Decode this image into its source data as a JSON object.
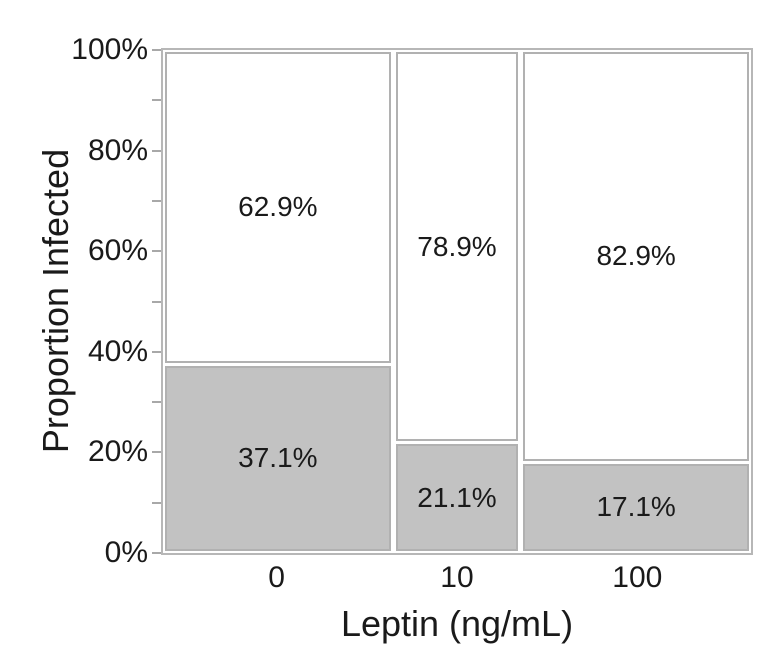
{
  "chart_data": {
    "type": "bar",
    "subtype": "mosaic-stacked-proportion",
    "title": "",
    "xlabel": "Leptin (ng/mL)",
    "ylabel": "Proportion Infected",
    "categories": [
      "0",
      "10",
      "100"
    ],
    "series": [
      {
        "name": "upper-white-segment",
        "values": [
          62.9,
          78.9,
          82.9
        ]
      },
      {
        "name": "lower-gray-segment",
        "values": [
          37.1,
          21.1,
          17.1
        ]
      }
    ],
    "bars": [
      {
        "category": "0",
        "width_weight": 35,
        "segments": [
          {
            "label": "62.9%",
            "value": 62.9,
            "fill": "#ffffff"
          },
          {
            "label": "37.1%",
            "value": 37.1,
            "fill": "#c2c2c2"
          }
        ]
      },
      {
        "category": "10",
        "width_weight": 19,
        "segments": [
          {
            "label": "78.9%",
            "value": 78.9,
            "fill": "#ffffff"
          },
          {
            "label": "21.1%",
            "value": 21.1,
            "fill": "#c2c2c2"
          }
        ]
      },
      {
        "category": "100",
        "width_weight": 35,
        "segments": [
          {
            "label": "82.9%",
            "value": 82.9,
            "fill": "#ffffff"
          },
          {
            "label": "17.1%",
            "value": 17.1,
            "fill": "#c2c2c2"
          }
        ]
      }
    ],
    "y_axis": {
      "range": [
        0,
        100
      ],
      "ticks": [
        {
          "pct": 100,
          "label": "100%"
        },
        {
          "pct": 90,
          "label": ""
        },
        {
          "pct": 80,
          "label": "80%"
        },
        {
          "pct": 70,
          "label": ""
        },
        {
          "pct": 60,
          "label": "60%"
        },
        {
          "pct": 50,
          "label": ""
        },
        {
          "pct": 40,
          "label": "40%"
        },
        {
          "pct": 30,
          "label": ""
        },
        {
          "pct": 20,
          "label": "20%"
        },
        {
          "pct": 10,
          "label": ""
        },
        {
          "pct": 0,
          "label": "0%"
        }
      ]
    },
    "grid": false,
    "legend": false
  },
  "colors": {
    "gray_fill": "#c2c2c2",
    "white_fill": "#ffffff",
    "segment_border": "#b1b1b1",
    "axis_line": "#a8a8a8",
    "frame": "#b7b7b7",
    "text": "#1a1a1a",
    "background": "#ffffff"
  }
}
